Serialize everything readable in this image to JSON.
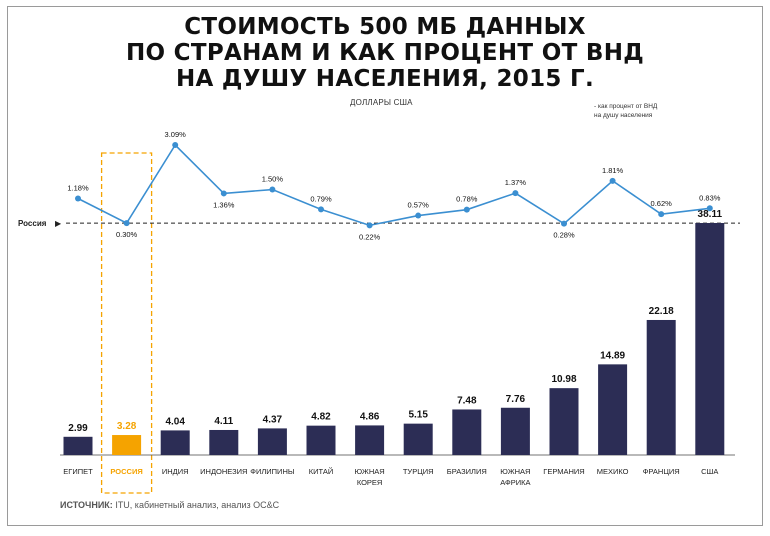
{
  "title_lines": [
    "СТОИМОСТЬ 500 МБ ДАННЫХ",
    "ПО СТРАНАМ И КАК ПРОЦЕНТ ОТ ВНД",
    "НА ДУШУ НАСЕЛЕНИЯ, 2015 Г."
  ],
  "subtitle": "ДОЛЛАРЫ США",
  "legend_note": [
    "- как процент от ВНД",
    "на душу населения"
  ],
  "reference_label": "Россия",
  "reference_arrow": "▶",
  "source_label": "ИСТОЧНИК:",
  "source_text": " ITU, кабинетный анализ, анализ OC&C",
  "colors": {
    "bar": "#2c2d55",
    "highlight": "#f5a300",
    "line": "#3b8fd1",
    "frame": "#9a9a9a"
  },
  "chart_data": {
    "type": "bar",
    "categories": [
      [
        "ЕГИПЕТ"
      ],
      [
        "РОССИЯ"
      ],
      [
        "ИНДИЯ"
      ],
      [
        "ИНДОНЕЗИЯ"
      ],
      [
        "ФИЛИПИНЫ"
      ],
      [
        "КИТАЙ"
      ],
      [
        "ЮЖНАЯ",
        "КОРЕЯ"
      ],
      [
        "ТУРЦИЯ"
      ],
      [
        "БРАЗИЛИЯ"
      ],
      [
        "ЮЖНАЯ",
        "АФРИКА"
      ],
      [
        "ГЕРМАНИЯ"
      ],
      [
        "МЕХИКО"
      ],
      [
        "ФРАНЦИЯ"
      ],
      [
        "США"
      ]
    ],
    "highlight_index": 1,
    "series": [
      {
        "type": "bar",
        "values": [
          2.99,
          3.28,
          4.04,
          4.11,
          4.37,
          4.82,
          4.86,
          5.15,
          7.48,
          7.76,
          10.98,
          14.89,
          22.18,
          38.11
        ],
        "labels": [
          "2.99",
          "3.28",
          "4.04",
          "4.11",
          "4.37",
          "4.82",
          "4.86",
          "5.15",
          "7.48",
          "7.76",
          "10.98",
          "14.89",
          "22.18",
          "38.11"
        ]
      },
      {
        "type": "line",
        "values": [
          1.18,
          0.3,
          3.09,
          1.36,
          1.5,
          0.79,
          0.22,
          0.57,
          0.78,
          1.37,
          0.28,
          1.81,
          0.62,
          0.83
        ],
        "labels": [
          "1.18%",
          "0.30%",
          "3.09%",
          "1.36%",
          "1.50%",
          "0.79%",
          "0.22%",
          "0.57%",
          "0.78%",
          "1.37%",
          "0.28%",
          "1.81%",
          "0.62%",
          "0.83%"
        ]
      }
    ],
    "reference_value": 0.3,
    "ylim_bars": [
      0,
      40
    ]
  }
}
